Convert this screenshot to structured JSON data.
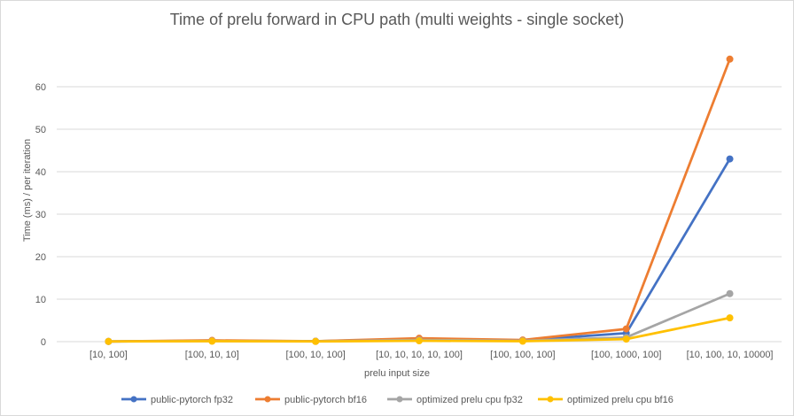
{
  "chart_data": {
    "type": "line",
    "title": "Time of prelu forward in CPU path (multi weights - single socket)",
    "xlabel": "prelu input size",
    "ylabel": "Time (ms) / per iteration",
    "ylim": [
      0,
      70
    ],
    "yticks": [
      0,
      10,
      20,
      30,
      40,
      50,
      60
    ],
    "grid": true,
    "legend_position": "bottom",
    "categories": [
      "[10, 100]",
      "[100, 10, 10]",
      "[100, 10, 100]",
      "[10, 10, 10, 10, 100]",
      "[100, 100, 100]",
      "[100, 1000, 100]",
      "[10, 100, 10, 10000]"
    ],
    "series": [
      {
        "name": "public-pytorch fp32",
        "color": "#4472C4",
        "values": [
          0.05,
          0.2,
          0.1,
          0.6,
          0.3,
          2.0,
          43.0
        ]
      },
      {
        "name": "public-pytorch bf16",
        "color": "#ED7D31",
        "values": [
          0.05,
          0.3,
          0.1,
          0.8,
          0.4,
          3.0,
          66.5
        ]
      },
      {
        "name": "optimized prelu cpu fp32",
        "color": "#A5A5A5",
        "values": [
          0.05,
          0.15,
          0.08,
          0.4,
          0.2,
          1.0,
          11.3
        ]
      },
      {
        "name": "optimized prelu cpu bf16",
        "color": "#FFC000",
        "values": [
          0.05,
          0.1,
          0.05,
          0.2,
          0.1,
          0.6,
          5.6
        ]
      }
    ]
  }
}
